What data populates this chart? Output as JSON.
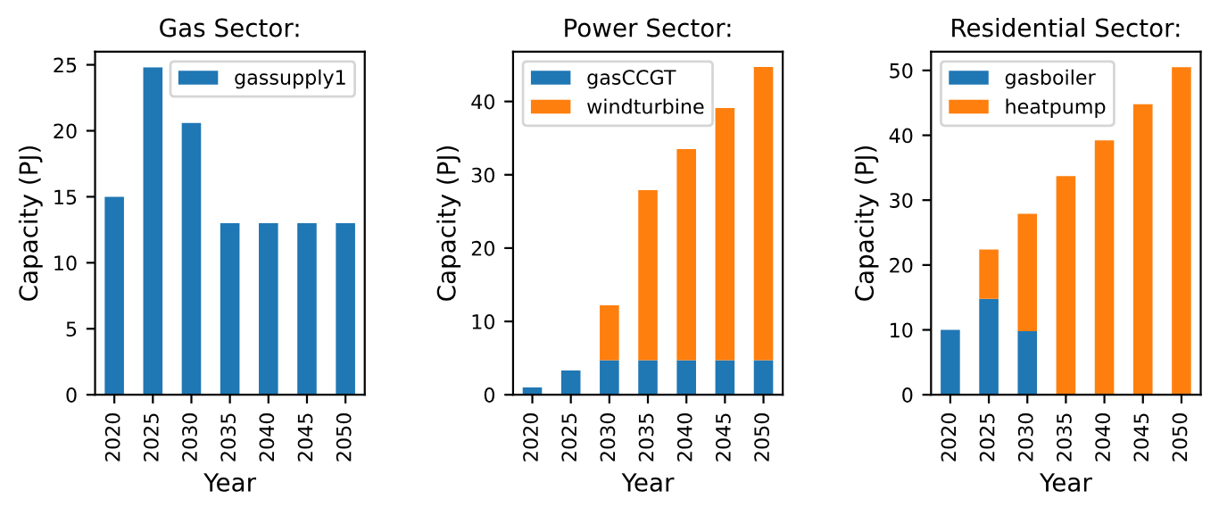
{
  "chart_data": [
    {
      "type": "bar",
      "title": "Gas Sector:",
      "xlabel": "Year",
      "ylabel": "Capacity (PJ)",
      "categories": [
        "2020",
        "2025",
        "2030",
        "2035",
        "2040",
        "2045",
        "2050"
      ],
      "series": [
        {
          "name": "gassupply1",
          "color": "#1f77b4",
          "values": [
            15.0,
            24.8,
            20.6,
            13.0,
            13.0,
            13.0,
            13.0
          ]
        }
      ],
      "ylim": [
        0,
        26
      ],
      "yticks": [
        0,
        5,
        10,
        15,
        20,
        25
      ],
      "legend": "top right",
      "grid": false
    },
    {
      "type": "bar",
      "stacked": true,
      "title": "Power Sector:",
      "xlabel": "Year",
      "ylabel": "Capacity (PJ)",
      "categories": [
        "2020",
        "2025",
        "2030",
        "2035",
        "2040",
        "2045",
        "2050"
      ],
      "series": [
        {
          "name": "gasCCGT",
          "color": "#1f77b4",
          "values": [
            1.0,
            3.3,
            4.7,
            4.7,
            4.7,
            4.7,
            4.7
          ]
        },
        {
          "name": "windturbine",
          "color": "#ff7f0e",
          "values": [
            0,
            0,
            7.5,
            23.2,
            28.8,
            34.4,
            40.0
          ]
        }
      ],
      "ylim": [
        0,
        46.8
      ],
      "yticks": [
        0,
        10,
        20,
        30,
        40
      ],
      "legend": "top left",
      "grid": false
    },
    {
      "type": "bar",
      "stacked": true,
      "title": "Residential Sector:",
      "xlabel": "Year",
      "ylabel": "Capacity (PJ)",
      "categories": [
        "2020",
        "2025",
        "2030",
        "2035",
        "2040",
        "2045",
        "2050"
      ],
      "series": [
        {
          "name": "gasboiler",
          "color": "#1f77b4",
          "values": [
            10.0,
            14.8,
            9.8,
            0,
            0,
            0,
            0
          ]
        },
        {
          "name": "heatpump",
          "color": "#ff7f0e",
          "values": [
            0,
            7.6,
            18.1,
            33.7,
            39.2,
            44.8,
            50.5
          ]
        }
      ],
      "ylim": [
        0,
        52.9
      ],
      "yticks": [
        0,
        10,
        20,
        30,
        40,
        50
      ],
      "legend": "top left",
      "grid": false
    }
  ]
}
